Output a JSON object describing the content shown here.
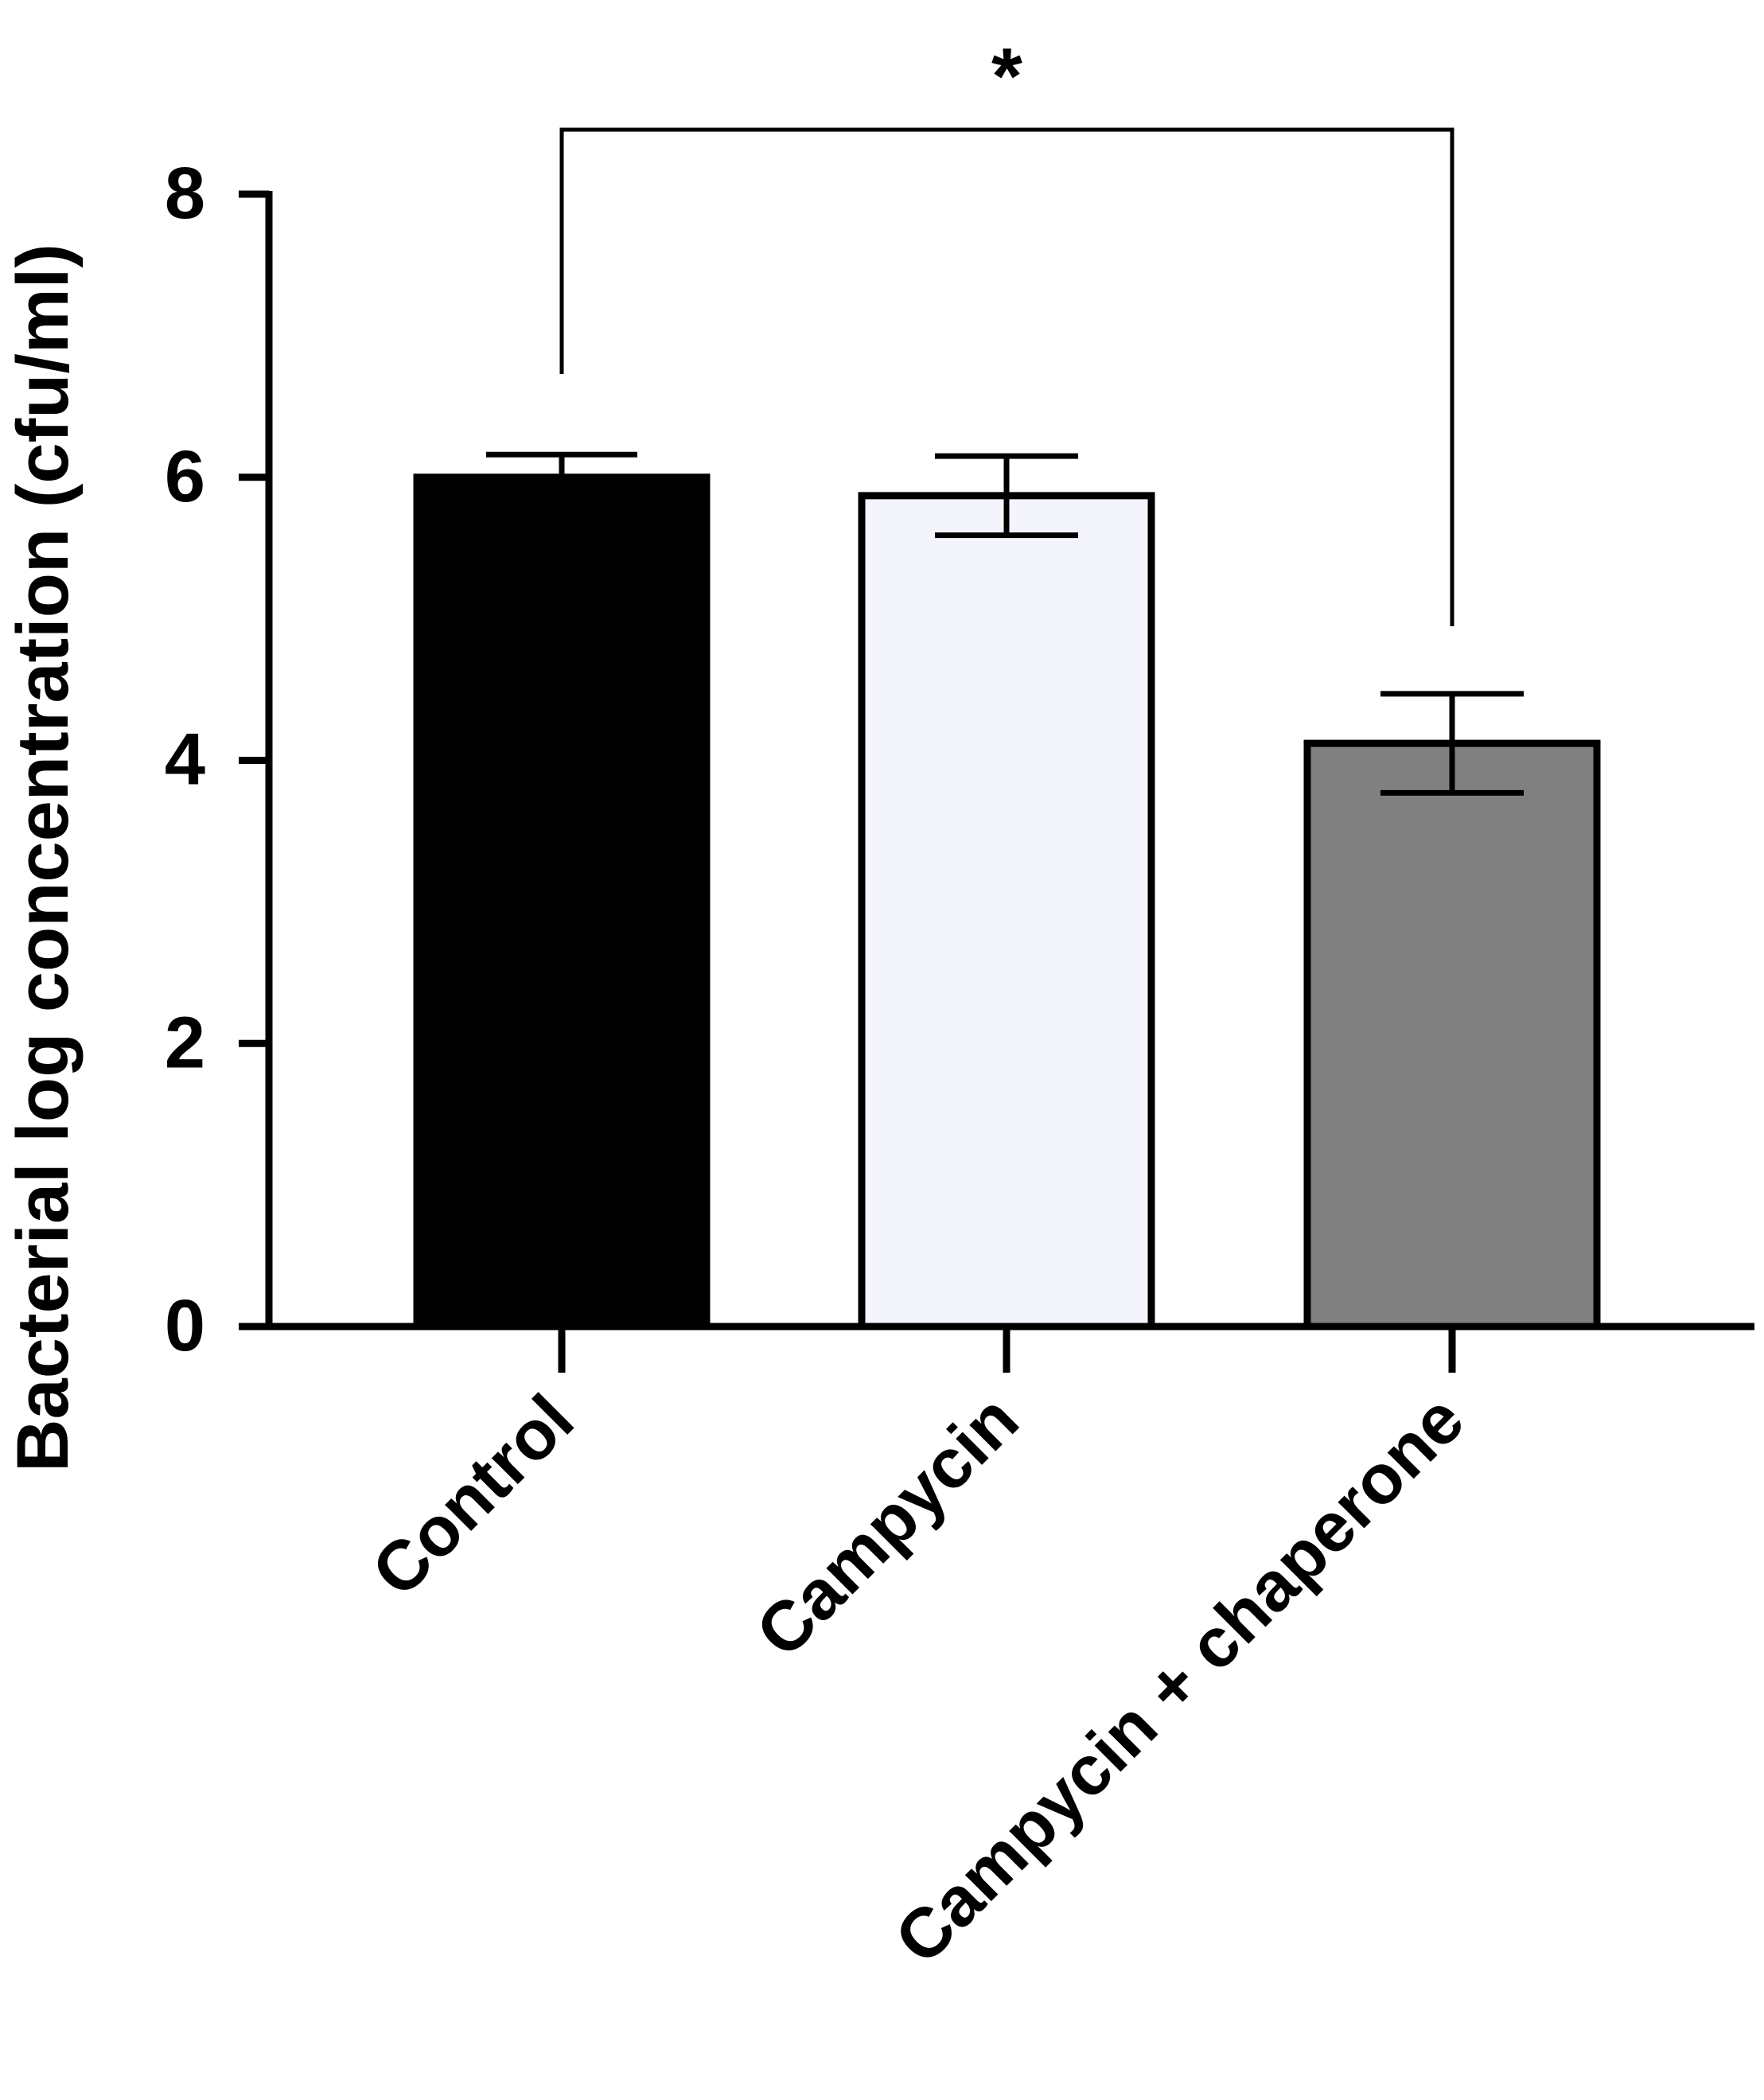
{
  "chart_data": {
    "type": "bar",
    "title": "",
    "xlabel": "",
    "ylabel": "Bacterial log concentration (cfu/ml)",
    "ylim": [
      0,
      8
    ],
    "yticks": [
      "0",
      "2",
      "4",
      "6",
      "8"
    ],
    "categories": [
      "Control",
      "Campycin",
      "Campycin + chaperone"
    ],
    "values": [
      6.0,
      5.87,
      4.12
    ],
    "error": [
      0.16,
      0.28,
      0.35
    ],
    "colors": [
      "#000000",
      "#f4f4fc",
      "#808080"
    ],
    "significance": {
      "from": 0,
      "to": 2,
      "label": "*"
    },
    "grid": false,
    "legend": "none"
  }
}
